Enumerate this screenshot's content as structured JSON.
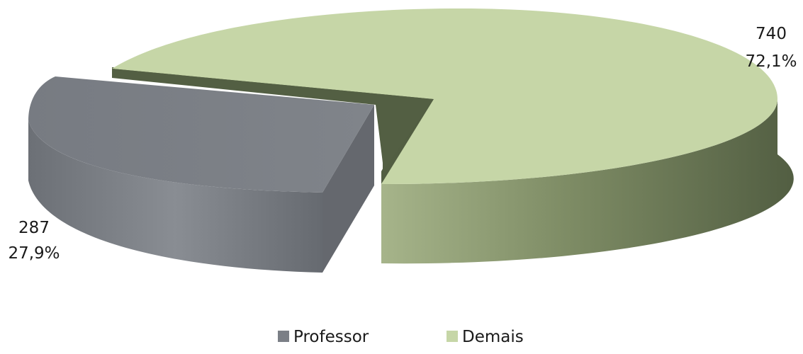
{
  "chart_data": {
    "type": "pie",
    "style": "3d-exploded",
    "title": "",
    "slices": [
      {
        "name": "Professor",
        "value": 287,
        "percent_label": "27,9%",
        "color": "#7b7f86",
        "side_color_dark": "#5a5d63",
        "side_color_light": "#8f9399"
      },
      {
        "name": "Demais",
        "value": 740,
        "percent_label": "72,1%",
        "color": "#c6d6a7",
        "side_color_dark": "#525e42",
        "side_color_light": "#9aaa7e"
      }
    ],
    "legend": {
      "placement": "bottom",
      "entries": [
        "Professor",
        "Demais"
      ]
    }
  }
}
